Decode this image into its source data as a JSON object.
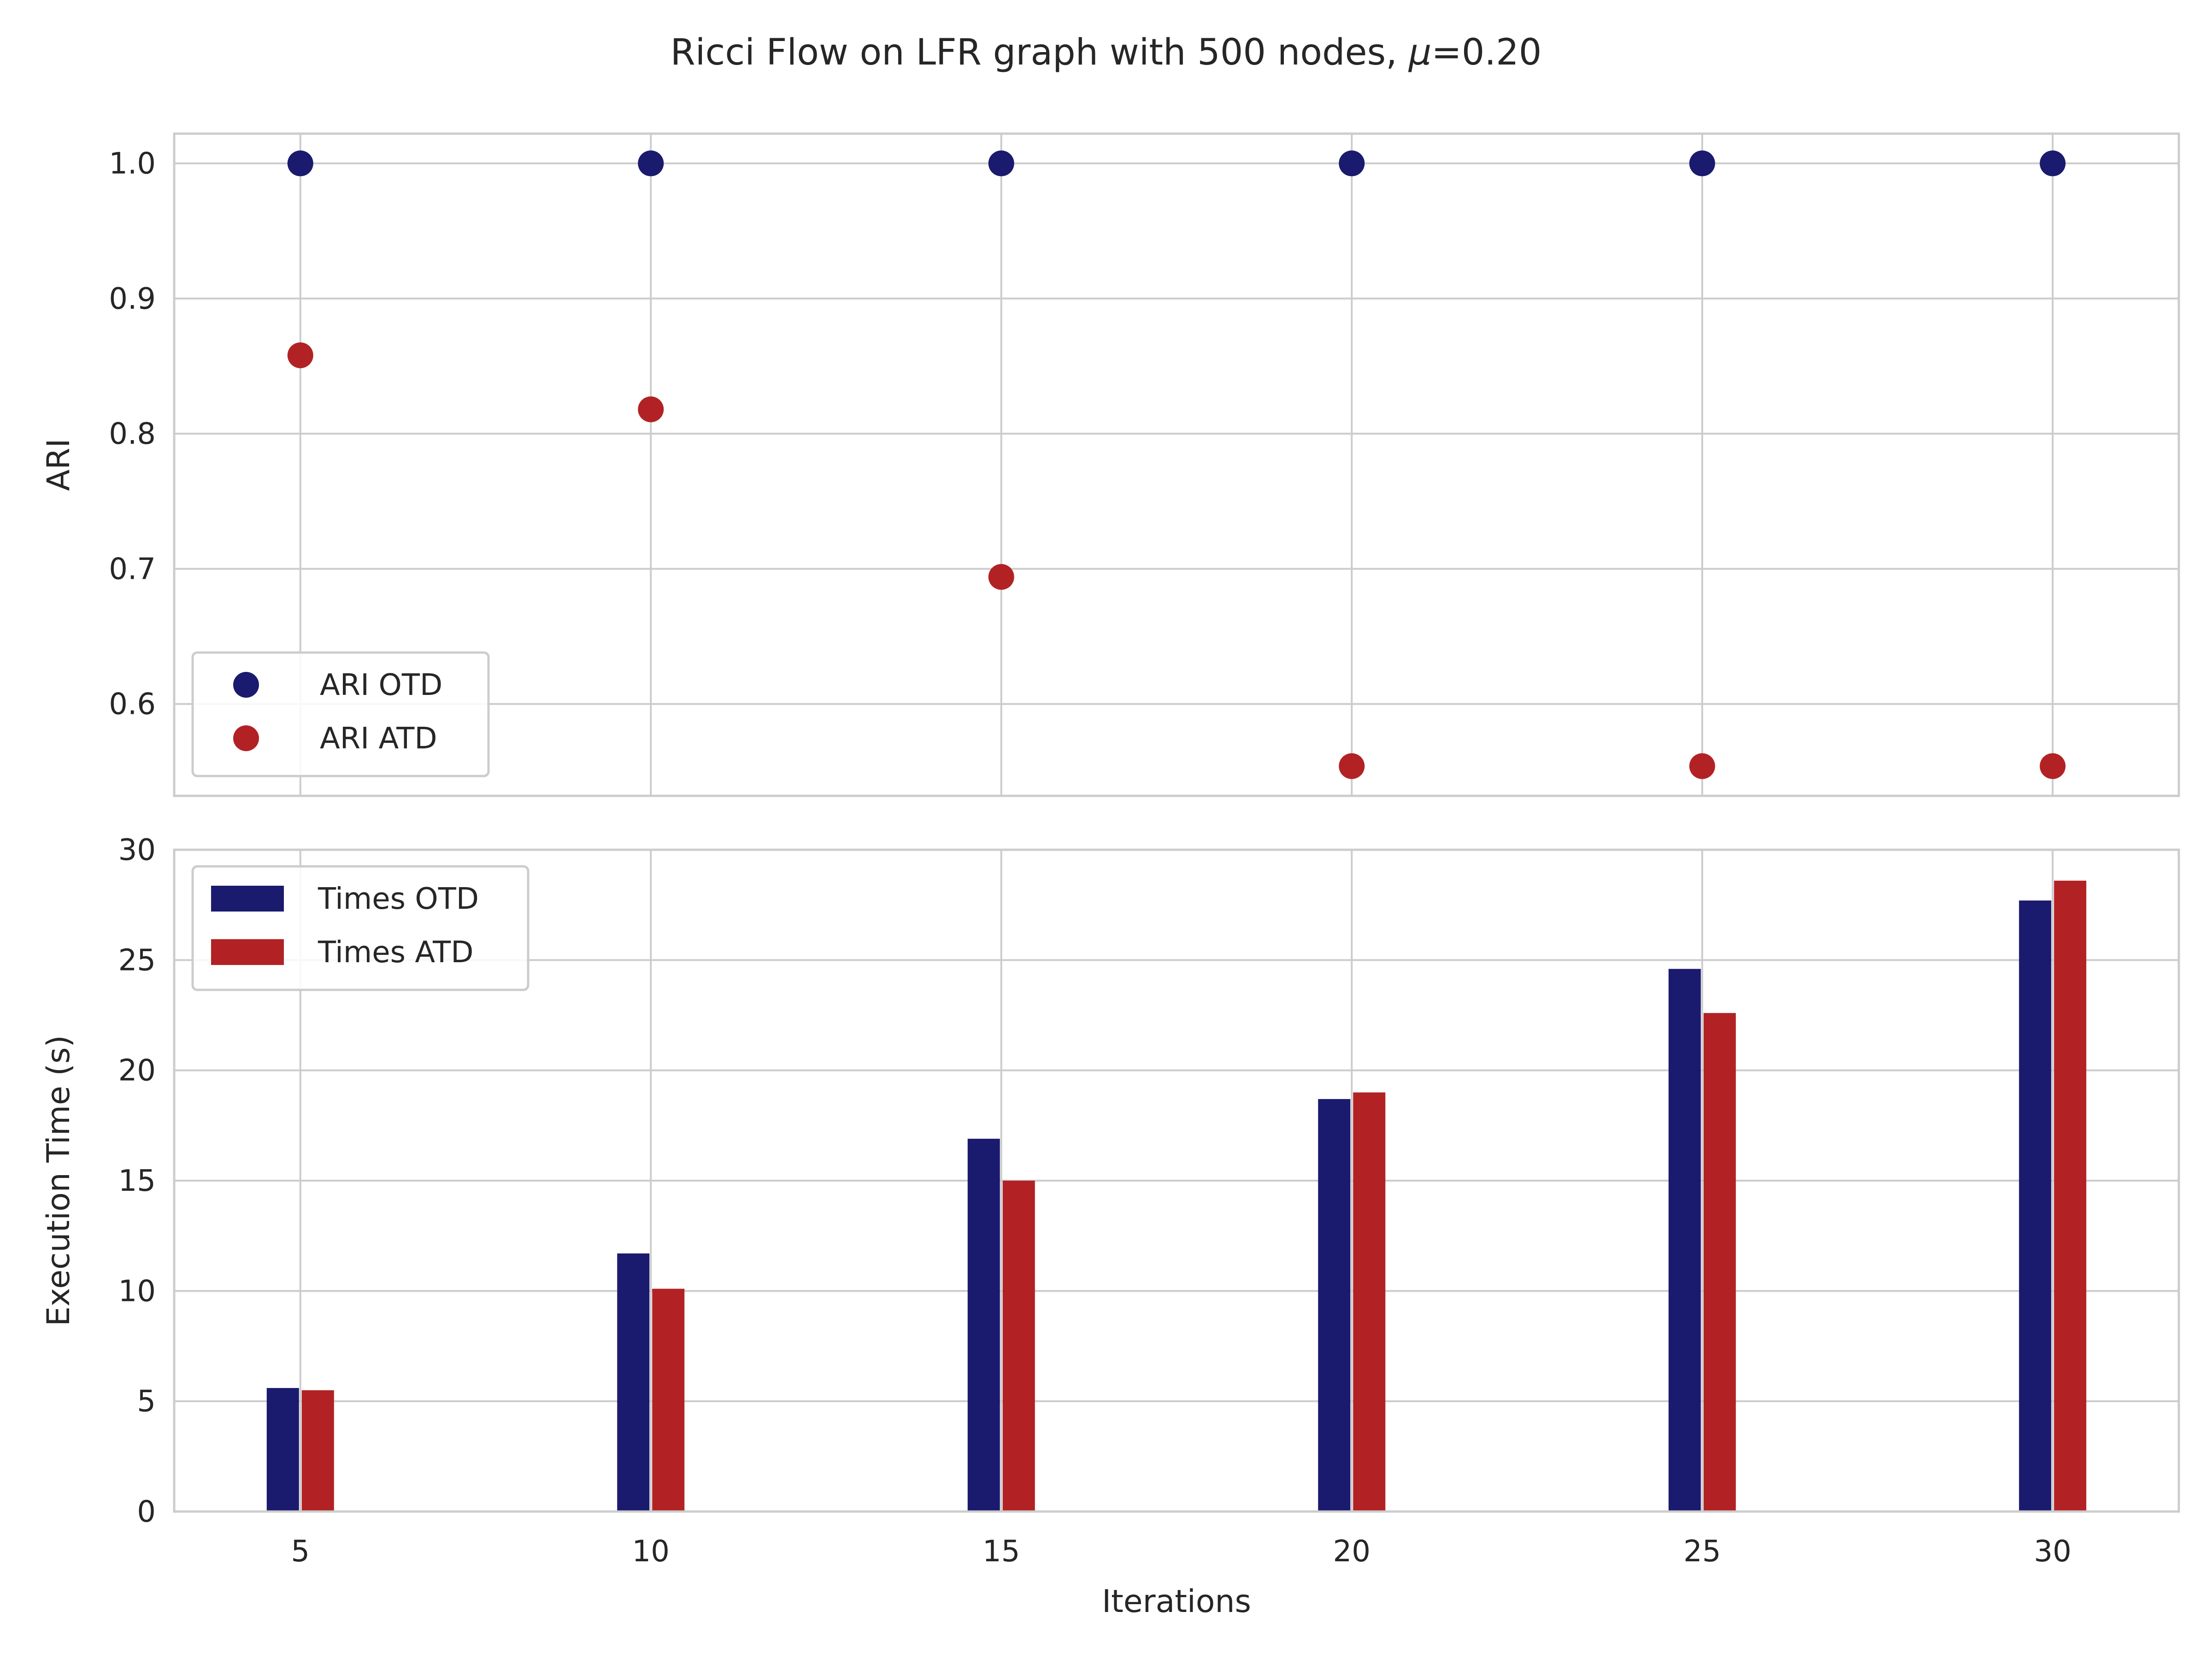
{
  "figure": {
    "title": "Ricci Flow on LFR graph with 500 nodes, ",
    "title_mu": "μ",
    "title_suffix": "=0.20"
  },
  "colors": {
    "otd": "#1a1a6e",
    "atd": "#b22224",
    "grid": "#cccccc",
    "frame": "#cccccc",
    "text": "#262626"
  },
  "chart_data": [
    {
      "type": "scatter",
      "ylabel": "ARI",
      "xlabel": "",
      "x": [
        5,
        10,
        15,
        20,
        25,
        30
      ],
      "xlim": [
        3.2,
        31.8
      ],
      "ylim": [
        0.532,
        1.022
      ],
      "yticks": [
        0.6,
        0.7,
        0.8,
        0.9,
        1.0
      ],
      "yticklabels": [
        "0.6",
        "0.7",
        "0.8",
        "0.9",
        "1.0"
      ],
      "grid": true,
      "legend_position": "lower-left",
      "series": [
        {
          "name": "ARI OTD",
          "color": "#1a1a6e",
          "values": [
            1.0,
            1.0,
            1.0,
            1.0,
            1.0,
            1.0
          ]
        },
        {
          "name": "ARI ATD",
          "color": "#b22224",
          "values": [
            0.858,
            0.818,
            0.694,
            0.554,
            0.554,
            0.554
          ]
        }
      ]
    },
    {
      "type": "bar",
      "ylabel": "Execution Time (s)",
      "xlabel": "Iterations",
      "x": [
        5,
        10,
        15,
        20,
        25,
        30
      ],
      "xticklabels": [
        "5",
        "10",
        "15",
        "20",
        "25",
        "30"
      ],
      "xlim": [
        3.2,
        31.8
      ],
      "ylim": [
        0,
        30
      ],
      "yticks": [
        0,
        5,
        10,
        15,
        20,
        25,
        30
      ],
      "yticklabels": [
        "0",
        "5",
        "10",
        "15",
        "20",
        "25",
        "30"
      ],
      "grid": true,
      "legend_position": "top-left",
      "series": [
        {
          "name": "Times OTD",
          "color": "#1a1a6e",
          "values": [
            5.6,
            11.7,
            16.9,
            18.7,
            24.6,
            27.7
          ]
        },
        {
          "name": "Times ATD",
          "color": "#b22224",
          "values": [
            5.5,
            10.1,
            15.0,
            19.0,
            22.6,
            28.6
          ]
        }
      ]
    }
  ]
}
